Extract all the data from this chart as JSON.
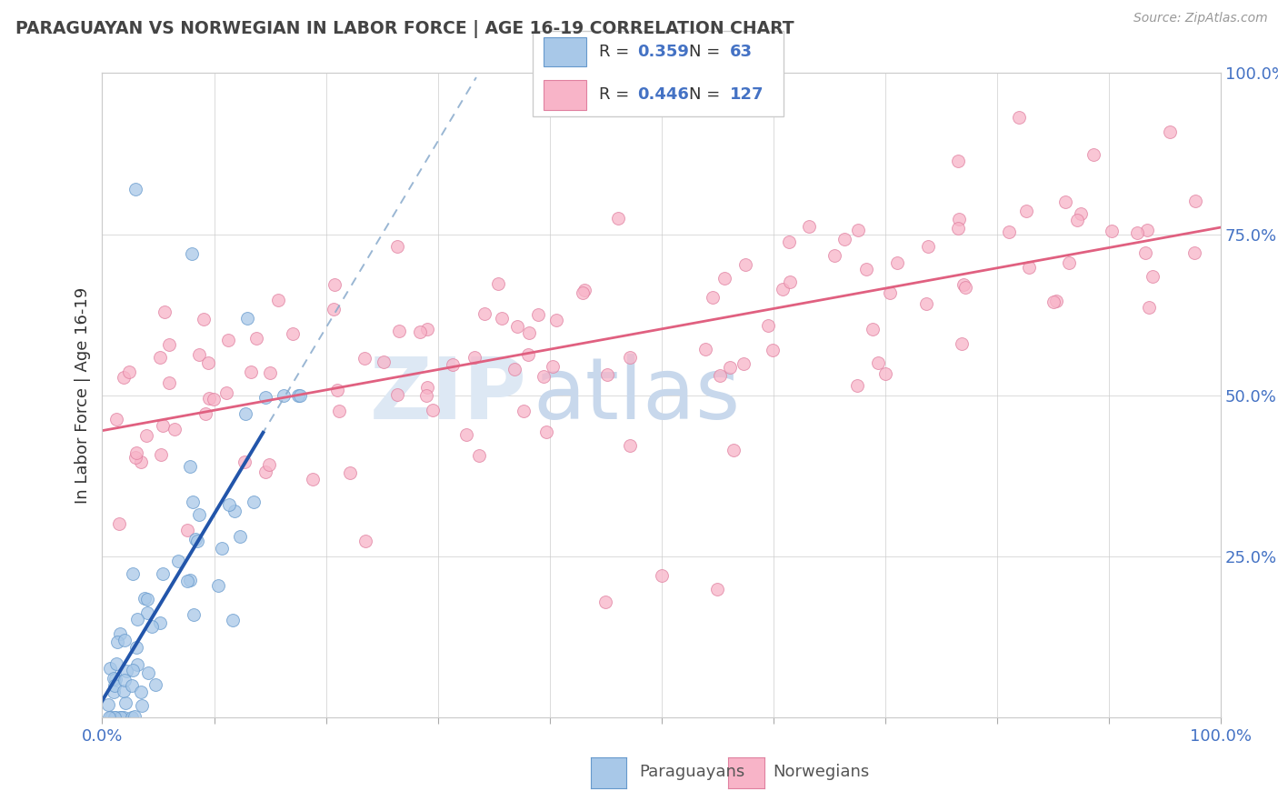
{
  "title": "PARAGUAYAN VS NORWEGIAN IN LABOR FORCE | AGE 16-19 CORRELATION CHART",
  "source_text": "Source: ZipAtlas.com",
  "ylabel": "In Labor Force | Age 16-19",
  "paraguayan_R": 0.359,
  "paraguayan_N": 63,
  "norwegian_R": 0.446,
  "norwegian_N": 127,
  "blue_scatter_color": "#a8c8e8",
  "blue_scatter_edge": "#6699cc",
  "blue_line_solid_color": "#2255aa",
  "blue_line_dash_color": "#88aacc",
  "pink_scatter_color": "#f8b4c8",
  "pink_scatter_edge": "#e080a0",
  "pink_line_color": "#e06080",
  "grid_color": "#cccccc",
  "title_color": "#444444",
  "axis_tick_color": "#4472c4",
  "source_color": "#999999",
  "legend_border_color": "#cccccc",
  "background_color": "#ffffff",
  "watermark_zip_color": "#dde8f4",
  "watermark_atlas_color": "#c8d8ec",
  "legend_blue_swatch": "#a8c8e8",
  "legend_pink_swatch": "#f8b4c8",
  "legend_swatch_blue_edge": "#6699cc",
  "legend_swatch_pink_edge": "#e080a0"
}
